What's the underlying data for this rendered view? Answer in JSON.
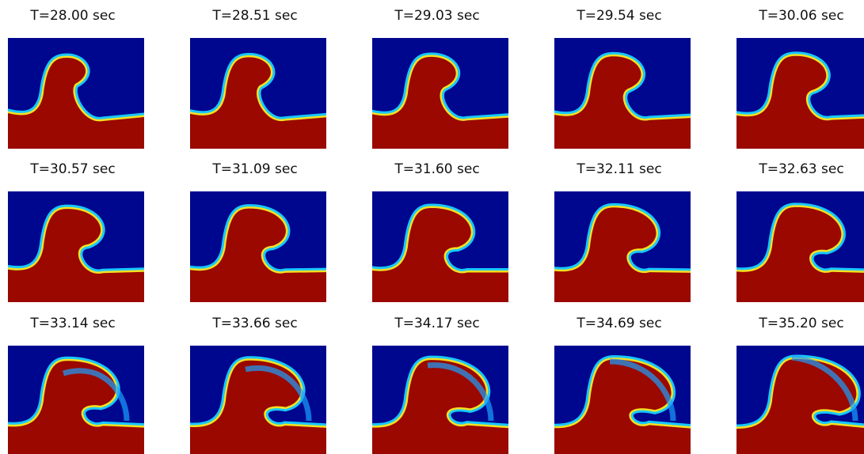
{
  "panels": [
    {
      "title": "T=28.00 sec"
    },
    {
      "title": "T=28.51 sec"
    },
    {
      "title": "T=29.03 sec"
    },
    {
      "title": "T=29.54 sec"
    },
    {
      "title": "T=30.06 sec"
    },
    {
      "title": "T=30.57 sec"
    },
    {
      "title": "T=31.09 sec"
    },
    {
      "title": "T=31.60 sec"
    },
    {
      "title": "T=32.11 sec"
    },
    {
      "title": "T=32.63 sec"
    },
    {
      "title": "T=33.14 sec"
    },
    {
      "title": "T=33.66 sec"
    },
    {
      "title": "T=34.17 sec"
    },
    {
      "title": "T=34.69 sec"
    },
    {
      "title": "T=35.20 sec"
    }
  ]
}
